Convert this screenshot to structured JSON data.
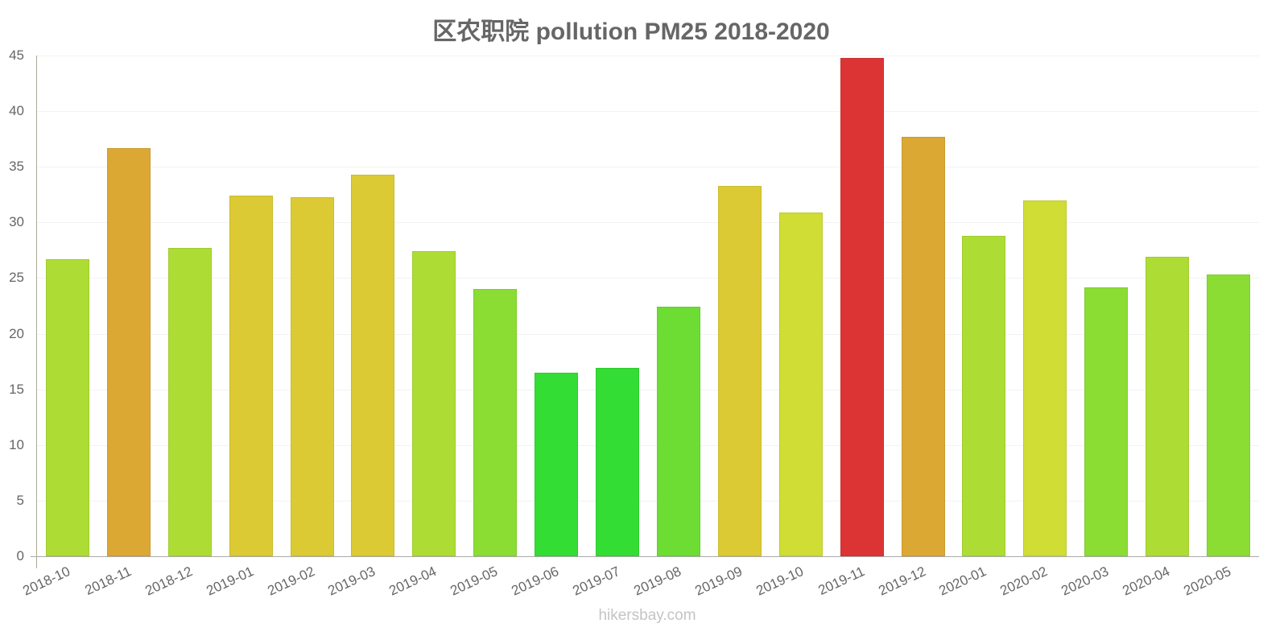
{
  "title": "区农职院 pollution PM25 2018-2020",
  "watermark": "hikersbay.com",
  "chart_data": {
    "type": "bar",
    "title": "区农职院 pollution PM25 2018-2020",
    "xlabel": "",
    "ylabel": "",
    "ylim": [
      0,
      45
    ],
    "yticks": [
      0,
      5,
      10,
      15,
      20,
      25,
      30,
      35,
      40,
      45
    ],
    "grid": true,
    "legend": "none",
    "categories": [
      "2018-10",
      "2018-11",
      "2018-12",
      "2019-01",
      "2019-02",
      "2019-03",
      "2019-04",
      "2019-05",
      "2019-06",
      "2019-07",
      "2019-08",
      "2019-09",
      "2019-10",
      "2019-11",
      "2019-12",
      "2020-01",
      "2020-02",
      "2020-03",
      "2020-04",
      "2020-05"
    ],
    "values": [
      26.7,
      36.7,
      27.7,
      32.4,
      32.3,
      34.3,
      27.4,
      24.0,
      16.5,
      16.9,
      22.4,
      33.3,
      30.9,
      44.8,
      37.7,
      28.8,
      32.0,
      24.2,
      26.9,
      25.3
    ],
    "colors": [
      "#addd34",
      "#dca834",
      "#addd34",
      "#dcca34",
      "#dcca34",
      "#dcca34",
      "#addd34",
      "#8bdd34",
      "#34dd34",
      "#34dd34",
      "#6ddd34",
      "#dcca34",
      "#cfdd34",
      "#dc3434",
      "#dca834",
      "#addd34",
      "#cfdd34",
      "#8bdd34",
      "#addd34",
      "#8bdd34"
    ]
  }
}
